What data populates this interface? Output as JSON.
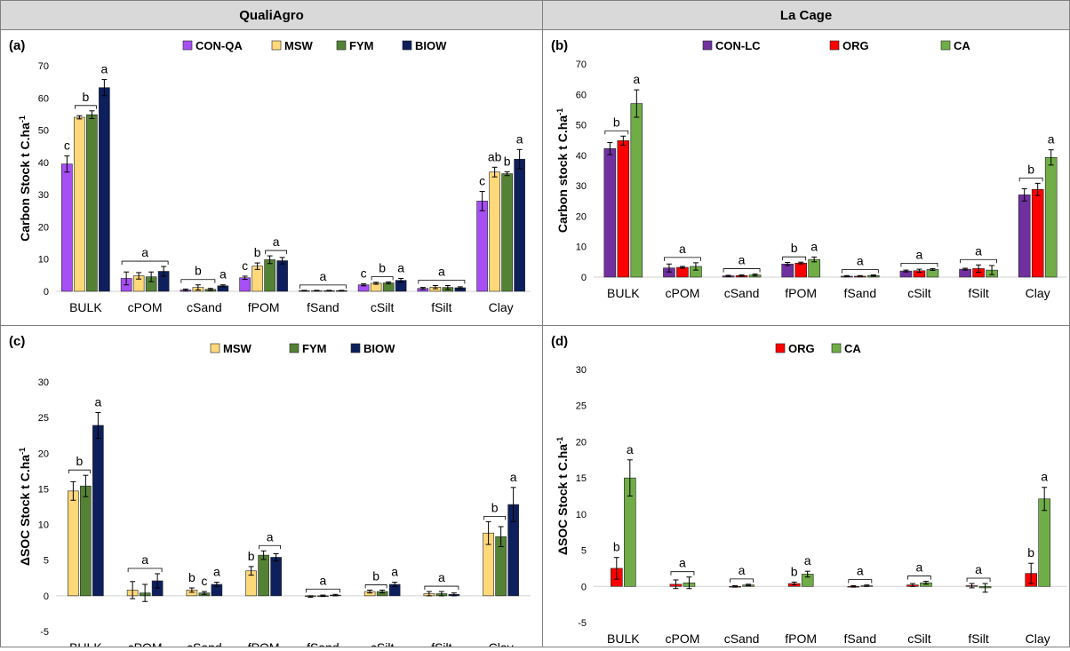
{
  "headers": {
    "left": "QualiAgro",
    "right": "La Cage"
  },
  "chart_data": [
    {
      "id": "a",
      "panel_label": "(a)",
      "type": "bar",
      "ylabel": "Carbon Stock t C.ha",
      "ylabel_sup": "-1",
      "ylim": [
        0,
        70
      ],
      "yticks": [
        0,
        10,
        20,
        30,
        40,
        50,
        60,
        70
      ],
      "categories": [
        "BULK",
        "cPOM",
        "cSand",
        "fPOM",
        "fSand",
        "cSilt",
        "fSilt",
        "Clay"
      ],
      "legend_position": "top-center",
      "series": [
        {
          "name": "CON-QA",
          "color": "#a64ff5",
          "values": [
            39.5,
            4.0,
            0.4,
            4.2,
            0.2,
            2.0,
            0.9,
            28.0
          ],
          "errors": [
            2.5,
            2.0,
            0.3,
            0.5,
            0.1,
            0.3,
            0.3,
            3.0
          ]
        },
        {
          "name": "MSW",
          "color": "#ffd87a",
          "values": [
            54.0,
            4.8,
            1.2,
            7.8,
            0.2,
            2.5,
            1.3,
            37.0
          ],
          "errors": [
            0.5,
            1.0,
            0.8,
            1.0,
            0.1,
            0.3,
            0.5,
            1.5
          ]
        },
        {
          "name": "FYM",
          "color": "#548235",
          "values": [
            54.8,
            4.5,
            0.6,
            9.8,
            0.2,
            2.6,
            1.2,
            36.5
          ],
          "errors": [
            1.2,
            1.5,
            0.3,
            1.2,
            0.1,
            0.3,
            0.6,
            0.6
          ]
        },
        {
          "name": "BIOW",
          "color": "#0d1f5c",
          "values": [
            63.2,
            6.2,
            1.7,
            9.5,
            0.2,
            3.4,
            1.1,
            41.0
          ],
          "errors": [
            2.5,
            1.5,
            0.3,
            1.0,
            0.1,
            0.6,
            0.3,
            3.0
          ]
        }
      ],
      "annotations": [
        {
          "category": 0,
          "series": 0,
          "text": "c"
        },
        {
          "category": 0,
          "series_range": [
            1,
            2
          ],
          "text": "b",
          "bracket": true
        },
        {
          "category": 0,
          "series": 3,
          "text": "a"
        },
        {
          "category": 1,
          "series_range": [
            0,
            3
          ],
          "text": "a",
          "bracket": true
        },
        {
          "category": 2,
          "series_range": [
            0,
            2
          ],
          "text": "b",
          "bracket": true
        },
        {
          "category": 2,
          "series": 3,
          "text": "a"
        },
        {
          "category": 3,
          "series": 0,
          "text": "c"
        },
        {
          "category": 3,
          "series": 1,
          "text": "b"
        },
        {
          "category": 3,
          "series_range": [
            2,
            3
          ],
          "text": "a",
          "bracket": true
        },
        {
          "category": 4,
          "series_range": [
            0,
            3
          ],
          "text": "a",
          "bracket": true
        },
        {
          "category": 5,
          "series": 0,
          "text": "c"
        },
        {
          "category": 5,
          "series_range": [
            1,
            2
          ],
          "text": "b",
          "bracket": true
        },
        {
          "category": 5,
          "series": 3,
          "text": "a"
        },
        {
          "category": 6,
          "series_range": [
            0,
            3
          ],
          "text": "a",
          "bracket": true
        },
        {
          "category": 7,
          "series": 0,
          "text": "c"
        },
        {
          "category": 7,
          "series": 1,
          "text": "ab"
        },
        {
          "category": 7,
          "series": 2,
          "text": "b"
        },
        {
          "category": 7,
          "series": 3,
          "text": "a"
        }
      ]
    },
    {
      "id": "b",
      "panel_label": "(b)",
      "type": "bar",
      "ylabel": "Carbon stock  t C.ha",
      "ylabel_sup": "-1",
      "ylim": [
        0,
        70
      ],
      "yticks": [
        0,
        10,
        20,
        30,
        40,
        50,
        60,
        70
      ],
      "categories": [
        "BULK",
        "cPOM",
        "cSand",
        "fPOM",
        "fSand",
        "cSilt",
        "fSilt",
        "Clay"
      ],
      "legend_position": "top-center",
      "series": [
        {
          "name": "CON-LC",
          "color": "#7030a0",
          "values": [
            42.2,
            3.0,
            0.4,
            4.3,
            0.3,
            2.0,
            2.6,
            27.0
          ],
          "errors": [
            2.0,
            1.3,
            0.2,
            0.5,
            0.2,
            0.3,
            0.3,
            2.0
          ]
        },
        {
          "name": "ORG",
          "color": "#ff0000",
          "values": [
            44.8,
            3.2,
            0.5,
            4.6,
            0.3,
            2.1,
            2.8,
            28.8
          ],
          "errors": [
            1.5,
            0.3,
            0.2,
            0.3,
            0.2,
            0.5,
            1.2,
            2.0
          ]
        },
        {
          "name": "CA",
          "color": "#70ad47",
          "values": [
            57.0,
            3.5,
            0.7,
            5.8,
            0.5,
            2.5,
            2.3,
            39.3
          ],
          "errors": [
            4.5,
            1.2,
            0.3,
            0.8,
            0.2,
            0.3,
            1.5,
            2.5
          ]
        }
      ],
      "annotations": [
        {
          "category": 0,
          "series_range": [
            0,
            1
          ],
          "text": "b",
          "bracket": true
        },
        {
          "category": 0,
          "series": 2,
          "text": "a"
        },
        {
          "category": 1,
          "series_range": [
            0,
            2
          ],
          "text": "a",
          "bracket": true
        },
        {
          "category": 2,
          "series_range": [
            0,
            2
          ],
          "text": "a",
          "bracket": true
        },
        {
          "category": 3,
          "series_range": [
            0,
            1
          ],
          "text": "b",
          "bracket": true
        },
        {
          "category": 3,
          "series": 2,
          "text": "a"
        },
        {
          "category": 4,
          "series_range": [
            0,
            2
          ],
          "text": "a",
          "bracket": true
        },
        {
          "category": 5,
          "series_range": [
            0,
            2
          ],
          "text": "a",
          "bracket": true
        },
        {
          "category": 6,
          "series_range": [
            0,
            2
          ],
          "text": "a",
          "bracket": true
        },
        {
          "category": 7,
          "series_range": [
            0,
            1
          ],
          "text": "b",
          "bracket": true
        },
        {
          "category": 7,
          "series": 2,
          "text": "a"
        }
      ]
    },
    {
      "id": "c",
      "panel_label": "(c)",
      "type": "bar",
      "ylabel": "ΔSOC  Stock t C.ha",
      "ylabel_sup": "-1",
      "ylim": [
        -5,
        30
      ],
      "yticks": [
        -5,
        0,
        5,
        10,
        15,
        20,
        25,
        30
      ],
      "categories": [
        "BULK",
        "cPOM",
        "cSand",
        "fPOM",
        "fSand",
        "cSilt",
        "fSilt",
        "Clay"
      ],
      "legend_position": "top-center",
      "series": [
        {
          "name": "MSW",
          "color": "#ffd87a",
          "values": [
            14.7,
            0.8,
            0.8,
            3.5,
            -0.1,
            0.6,
            0.3,
            8.8
          ],
          "errors": [
            1.3,
            1.2,
            0.3,
            0.6,
            0.1,
            0.2,
            0.3,
            1.6
          ]
        },
        {
          "name": "FYM",
          "color": "#548235",
          "values": [
            15.4,
            0.4,
            0.4,
            5.7,
            0.0,
            0.6,
            0.3,
            8.3
          ],
          "errors": [
            1.5,
            1.2,
            0.2,
            0.6,
            0.1,
            0.2,
            0.3,
            1.4
          ]
        },
        {
          "name": "BIOW",
          "color": "#0d1f5c",
          "values": [
            23.9,
            2.1,
            1.6,
            5.4,
            0.1,
            1.6,
            0.2,
            12.8
          ],
          "errors": [
            1.8,
            1.0,
            0.3,
            0.5,
            0.1,
            0.3,
            0.2,
            2.4
          ]
        }
      ],
      "annotations": [
        {
          "category": 0,
          "series_range": [
            0,
            1
          ],
          "text": "b",
          "bracket": true
        },
        {
          "category": 0,
          "series": 2,
          "text": "a"
        },
        {
          "category": 1,
          "series_range": [
            0,
            2
          ],
          "text": "a",
          "bracket": true
        },
        {
          "category": 2,
          "series": 0,
          "text": "b"
        },
        {
          "category": 2,
          "series": 1,
          "text": "c"
        },
        {
          "category": 2,
          "series": 2,
          "text": "a"
        },
        {
          "category": 3,
          "series": 0,
          "text": "b"
        },
        {
          "category": 3,
          "series_range": [
            1,
            2
          ],
          "text": "a",
          "bracket": true
        },
        {
          "category": 4,
          "series_range": [
            0,
            2
          ],
          "text": "a",
          "bracket": true
        },
        {
          "category": 5,
          "series_range": [
            0,
            1
          ],
          "text": "b",
          "bracket": true
        },
        {
          "category": 5,
          "series": 2,
          "text": "a"
        },
        {
          "category": 6,
          "series_range": [
            0,
            2
          ],
          "text": "a",
          "bracket": true
        },
        {
          "category": 7,
          "series_range": [
            0,
            1
          ],
          "text": "b",
          "bracket": true
        },
        {
          "category": 7,
          "series": 2,
          "text": "a"
        }
      ]
    },
    {
      "id": "d",
      "panel_label": "(d)",
      "type": "bar",
      "ylabel": "ΔSOC Stock t C.ha",
      "ylabel_sup": "-1",
      "ylim": [
        -5,
        30
      ],
      "yticks": [
        -5,
        0,
        5,
        10,
        15,
        20,
        25,
        30
      ],
      "categories": [
        "BULK",
        "cPOM",
        "cSand",
        "fPOM",
        "fSand",
        "cSilt",
        "fSilt",
        "Clay"
      ],
      "legend_position": "top-center",
      "series": [
        {
          "name": "ORG",
          "color": "#ff0000",
          "values": [
            2.5,
            0.3,
            0.0,
            0.4,
            0.0,
            0.2,
            0.1,
            1.8
          ],
          "errors": [
            1.5,
            0.6,
            0.1,
            0.2,
            0.1,
            0.2,
            0.3,
            1.4
          ]
        },
        {
          "name": "CA",
          "color": "#70ad47",
          "values": [
            15.0,
            0.5,
            0.2,
            1.7,
            0.1,
            0.5,
            -0.2,
            12.1
          ],
          "errors": [
            2.5,
            0.8,
            0.1,
            0.4,
            0.1,
            0.2,
            0.6,
            1.6
          ]
        }
      ],
      "annotations": [
        {
          "category": 0,
          "series": 0,
          "text": "b"
        },
        {
          "category": 0,
          "series": 1,
          "text": "a"
        },
        {
          "category": 1,
          "series_range": [
            0,
            1
          ],
          "text": "a",
          "bracket": true
        },
        {
          "category": 2,
          "series_range": [
            0,
            1
          ],
          "text": "a",
          "bracket": true
        },
        {
          "category": 3,
          "series": 0,
          "text": "b"
        },
        {
          "category": 3,
          "series": 1,
          "text": "a"
        },
        {
          "category": 4,
          "series_range": [
            0,
            1
          ],
          "text": "a",
          "bracket": true
        },
        {
          "category": 5,
          "series_range": [
            0,
            1
          ],
          "text": "a",
          "bracket": true
        },
        {
          "category": 6,
          "series_range": [
            0,
            1
          ],
          "text": "a",
          "bracket": true
        },
        {
          "category": 7,
          "series": 0,
          "text": "b"
        },
        {
          "category": 7,
          "series": 1,
          "text": "a"
        }
      ]
    }
  ]
}
